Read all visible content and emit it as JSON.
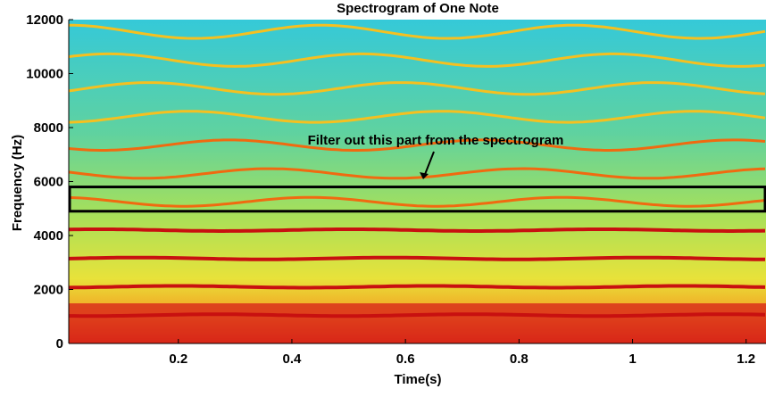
{
  "chart_data": {
    "type": "spectrogram",
    "title": "Spectrogram of One Note",
    "xlabel": "Time(s)",
    "ylabel": "Frequency (Hz)",
    "xlim": [
      0.007,
      1.235
    ],
    "ylim": [
      0,
      12000
    ],
    "xticks": [
      {
        "value": 0.2,
        "label": "0.2"
      },
      {
        "value": 0.4,
        "label": "0.4"
      },
      {
        "value": 0.6,
        "label": "0.6"
      },
      {
        "value": 0.8,
        "label": "0.8"
      },
      {
        "value": 1,
        "label": "1"
      },
      {
        "value": 1.2,
        "label": "1.2"
      }
    ],
    "yticks": [
      0,
      2000,
      4000,
      6000,
      8000,
      10000,
      12000
    ],
    "annotation": "Filter out this part from the spectrogram",
    "highlight_band": [
      4900,
      5800
    ]
  }
}
